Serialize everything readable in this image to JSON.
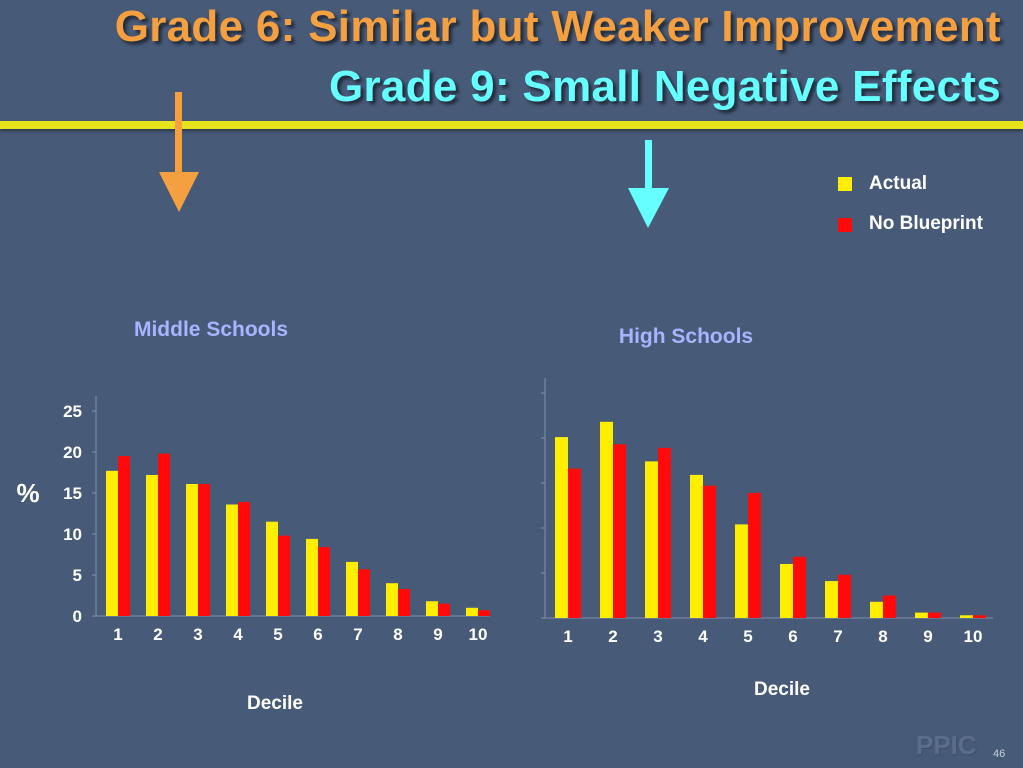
{
  "slide": {
    "title_line1": "Grade 6:  Similar but Weaker Improvement",
    "title_line2": "Grade 9:  Small Negative Effects",
    "logo_text": "PPIC",
    "page_number": "46"
  },
  "colors": {
    "background": "#475a78",
    "title_orange": "#f5a040",
    "title_cyan": "#66ffff",
    "rule": "#e6e21c",
    "arrow_orange": "#f5a040",
    "arrow_cyan": "#66ffff",
    "actual": "#ffee00",
    "no_blueprint": "#ff0a0a",
    "chart_title": "#a8b4ff"
  },
  "legend": [
    "Actual",
    "No Blueprint"
  ],
  "chart_data": [
    {
      "type": "bar",
      "title": "Middle Schools",
      "xlabel": "Decile",
      "ylabel": "%",
      "ylim": [
        0,
        25
      ],
      "yticks": [
        0,
        5,
        10,
        15,
        20,
        25
      ],
      "grid": false,
      "legend_position": "top-right",
      "categories": [
        "1",
        "2",
        "3",
        "4",
        "5",
        "6",
        "7",
        "8",
        "9",
        "10"
      ],
      "series": [
        {
          "name": "Actual",
          "values": [
            17.7,
            17.2,
            16.1,
            13.6,
            11.5,
            9.4,
            6.6,
            4.0,
            1.8,
            1.0
          ]
        },
        {
          "name": "No Blueprint",
          "values": [
            19.5,
            19.8,
            16.1,
            13.9,
            9.8,
            8.4,
            5.7,
            3.3,
            1.5,
            0.7
          ]
        }
      ]
    },
    {
      "type": "bar",
      "title": "High Schools",
      "xlabel": "Decile",
      "ylim": [
        0,
        25
      ],
      "grid": false,
      "categories": [
        "1",
        "2",
        "3",
        "4",
        "5",
        "6",
        "7",
        "8",
        "9",
        "10"
      ],
      "series": [
        {
          "name": "Actual",
          "values": [
            20.1,
            21.8,
            17.4,
            15.9,
            10.4,
            6.0,
            4.1,
            1.8,
            0.6,
            0.3
          ]
        },
        {
          "name": "No Blueprint",
          "values": [
            16.6,
            19.3,
            18.9,
            14.7,
            13.9,
            6.8,
            4.8,
            2.5,
            0.6,
            0.3
          ]
        }
      ]
    }
  ]
}
